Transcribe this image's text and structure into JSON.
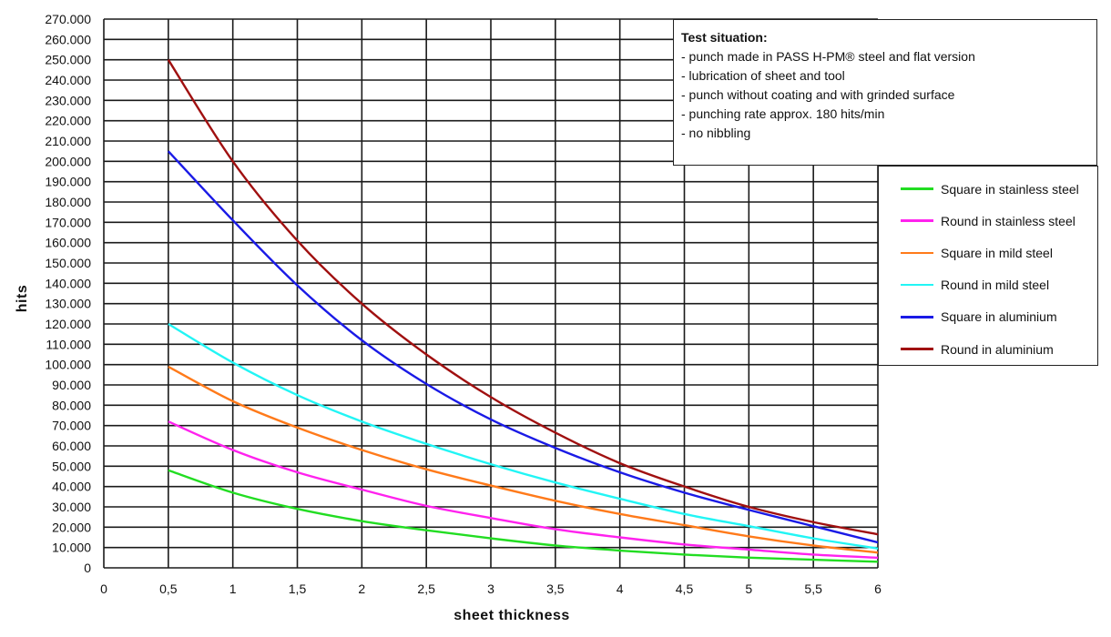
{
  "chart_data": {
    "type": "line",
    "xlabel": "sheet thickness",
    "ylabel": "hits",
    "xlim": [
      0,
      6
    ],
    "ylim": [
      0,
      270000
    ],
    "x_ticks": [
      "0",
      "0,5",
      "1",
      "1,5",
      "2",
      "2,5",
      "3",
      "3,5",
      "4",
      "4,5",
      "5",
      "5,5",
      "6"
    ],
    "y_ticks": [
      "0",
      "10.000",
      "20.000",
      "30.000",
      "40.000",
      "50.000",
      "60.000",
      "70.000",
      "80.000",
      "90.000",
      "100.000",
      "110.000",
      "120.000",
      "130.000",
      "140.000",
      "150.000",
      "160.000",
      "170.000",
      "180.000",
      "190.000",
      "200.000",
      "210.000",
      "220.000",
      "230.000",
      "240.000",
      "250.000",
      "260.000",
      "270.000"
    ],
    "grid": true,
    "legend_position": "right",
    "x": [
      0.5,
      1,
      1.5,
      2,
      2.5,
      3,
      3.5,
      4,
      4.5,
      5,
      5.5,
      6
    ],
    "series": [
      {
        "name": "Square in stainless steel",
        "color": "#22dd22",
        "values": [
          48000,
          37000,
          29000,
          23000,
          18500,
          14500,
          11000,
          8500,
          6500,
          5000,
          4000,
          3000
        ]
      },
      {
        "name": "Round in stainless steel",
        "color": "#ff22ee",
        "values": [
          72000,
          58000,
          47000,
          38500,
          30500,
          24500,
          19000,
          15000,
          11500,
          9000,
          6500,
          5000
        ]
      },
      {
        "name": "Square in mild steel",
        "color": "#ff7a1a",
        "values": [
          99000,
          82000,
          69000,
          58000,
          48500,
          40500,
          33000,
          26500,
          21000,
          15500,
          11000,
          7500
        ]
      },
      {
        "name": "Round in mild steel",
        "color": "#22f5f5",
        "values": [
          120000,
          101000,
          85000,
          72000,
          61000,
          51000,
          42000,
          34000,
          26500,
          20500,
          14500,
          9500
        ]
      },
      {
        "name": "Square in aluminium",
        "color": "#1a1ae6",
        "values": [
          205000,
          171000,
          139000,
          112000,
          90500,
          73000,
          59000,
          47000,
          37000,
          28500,
          20500,
          12500
        ]
      },
      {
        "name": "Round in aluminium",
        "color": "#a01010",
        "values": [
          250000,
          200000,
          161000,
          130000,
          105000,
          84000,
          66500,
          51500,
          40000,
          30000,
          22500,
          16500
        ]
      }
    ]
  },
  "info": {
    "title": "Test situation:",
    "lines": [
      "- punch made in PASS H-PM® steel and flat version",
      "- lubrication of sheet and tool",
      "- punch without coating and with grinded surface",
      "- punching rate approx. 180 hits/min",
      "- no nibbling"
    ]
  }
}
